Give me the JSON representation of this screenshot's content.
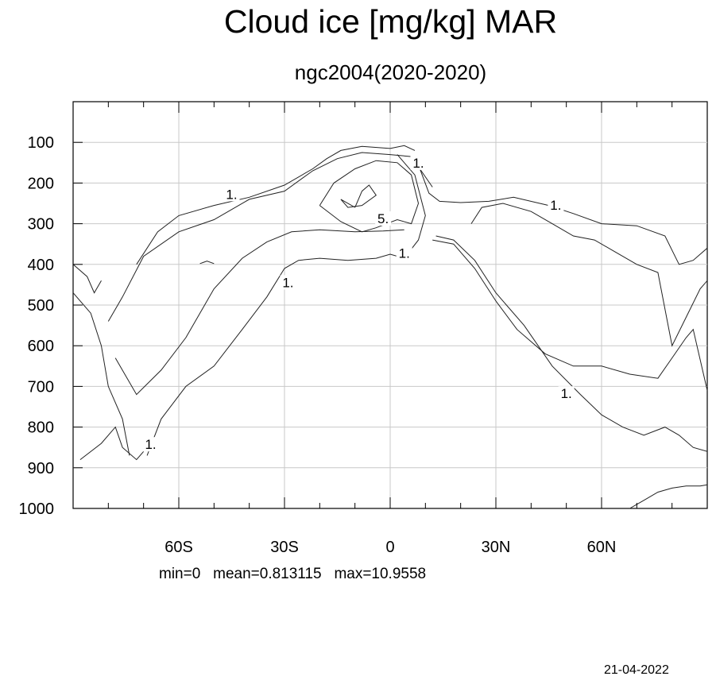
{
  "title": "Cloud ice [mg/kg] MAR",
  "subtitle": "ngc2004(2020-2020)",
  "stats": {
    "min_label": "min=0",
    "mean_label": "mean=0.813115",
    "max_label": "max=10.9558"
  },
  "date": "21-04-2022",
  "chart_data": {
    "type": "contour",
    "title": "Cloud ice [mg/kg] MAR",
    "subtitle": "ngc2004(2020-2020)",
    "xlabel": "",
    "ylabel": "",
    "xlim": [
      -90,
      90
    ],
    "ylim": [
      1000,
      0
    ],
    "x_ticks": [
      {
        "value": -60,
        "label": "60S"
      },
      {
        "value": -30,
        "label": "30S"
      },
      {
        "value": 0,
        "label": "0"
      },
      {
        "value": 30,
        "label": "30N"
      },
      {
        "value": 60,
        "label": "60N"
      }
    ],
    "y_ticks": [
      {
        "value": 100,
        "label": "100"
      },
      {
        "value": 200,
        "label": "200"
      },
      {
        "value": 300,
        "label": "300"
      },
      {
        "value": 400,
        "label": "400"
      },
      {
        "value": 500,
        "label": "500"
      },
      {
        "value": 600,
        "label": "600"
      },
      {
        "value": 700,
        "label": "700"
      },
      {
        "value": 800,
        "label": "800"
      },
      {
        "value": 900,
        "label": "900"
      },
      {
        "value": 1000,
        "label": "1000"
      }
    ],
    "grid": true,
    "contour_levels": [
      1,
      5
    ],
    "contour_labels": [
      {
        "text": "1.",
        "lat": -45,
        "p": 235
      },
      {
        "text": "1.",
        "lat": 8,
        "p": 158
      },
      {
        "text": "1.",
        "lat": 47,
        "p": 262
      },
      {
        "text": "5.",
        "lat": -2,
        "p": 295
      },
      {
        "text": "1.",
        "lat": 4,
        "p": 380
      },
      {
        "text": "1.",
        "lat": -29,
        "p": 452
      },
      {
        "text": "1.",
        "lat": 50,
        "p": 725
      },
      {
        "text": "1.",
        "lat": -68,
        "p": 850
      }
    ],
    "contours": [
      {
        "level": 1,
        "lat": [
          -72,
          -66,
          -60,
          -50,
          -40,
          -30,
          -22,
          -18,
          -14,
          -8,
          0,
          4,
          7
        ],
        "p": [
          400,
          320,
          280,
          255,
          235,
          205,
          165,
          140,
          120,
          110,
          115,
          108,
          120
        ]
      },
      {
        "level": 1,
        "lat": [
          8,
          11,
          14,
          20,
          28,
          35,
          45,
          52,
          60,
          70,
          78,
          82,
          86,
          90
        ],
        "p": [
          155,
          225,
          245,
          248,
          245,
          235,
          255,
          275,
          300,
          305,
          330,
          400,
          390,
          360
        ]
      },
      {
        "level": 1,
        "lat": [
          -69,
          -65,
          -58,
          -50,
          -42,
          -35,
          -30,
          -26,
          -20,
          -12,
          -4,
          0,
          4,
          8,
          10,
          7,
          2
        ],
        "p": [
          870,
          780,
          700,
          650,
          560,
          480,
          410,
          390,
          385,
          390,
          385,
          375,
          385,
          340,
          280,
          180,
          130
        ]
      },
      {
        "level": 1,
        "lat": [
          -80,
          -76,
          -70,
          -60,
          -50,
          -40,
          -30,
          -22,
          -15,
          -8,
          0,
          6,
          12
        ],
        "p": [
          540,
          480,
          380,
          320,
          290,
          240,
          220,
          170,
          140,
          125,
          130,
          135,
          210
        ]
      },
      {
        "level": 1,
        "lat": [
          -78,
          -72,
          -65,
          -58,
          -50,
          -42,
          -35,
          -28,
          -20,
          -10,
          -2,
          4
        ],
        "p": [
          630,
          720,
          660,
          580,
          460,
          385,
          345,
          320,
          315,
          320,
          318,
          315
        ]
      },
      {
        "level": 1,
        "lat": [
          12,
          18,
          24,
          30,
          36,
          44,
          52,
          60,
          68,
          76,
          80,
          84,
          86,
          90
        ],
        "p": [
          340,
          350,
          410,
          490,
          560,
          620,
          650,
          650,
          670,
          680,
          630,
          580,
          560,
          710
        ]
      },
      {
        "level": 1,
        "lat": [
          23,
          26,
          32,
          40,
          46,
          52,
          58,
          64,
          70,
          76,
          80,
          84,
          88,
          90
        ],
        "p": [
          300,
          260,
          250,
          270,
          300,
          330,
          340,
          370,
          400,
          420,
          600,
          530,
          460,
          440
        ]
      },
      {
        "level": 1,
        "lat": [
          13,
          18,
          24,
          30,
          38,
          46,
          54,
          60,
          66,
          72,
          78,
          82,
          86,
          90
        ],
        "p": [
          330,
          340,
          390,
          470,
          550,
          650,
          720,
          770,
          800,
          820,
          800,
          820,
          850,
          860
        ]
      },
      {
        "level": 1,
        "lat": [
          -90,
          -85,
          -82,
          -80,
          -76,
          -74
        ],
        "p": [
          470,
          520,
          600,
          700,
          780,
          870
        ]
      },
      {
        "level": 1,
        "lat": [
          -90,
          -86,
          -84,
          -82
        ],
        "p": [
          400,
          430,
          470,
          440
        ]
      },
      {
        "level": 1,
        "lat": [
          -88,
          -82,
          -78,
          -76,
          -72,
          -70
        ],
        "p": [
          880,
          840,
          800,
          850,
          880,
          860
        ]
      },
      {
        "level": 1,
        "lat": [
          68,
          72,
          76,
          80,
          84,
          88,
          90
        ],
        "p": [
          1000,
          980,
          960,
          950,
          945,
          945,
          942
        ]
      },
      {
        "level": 1,
        "lat": [
          -54,
          -52,
          -50
        ],
        "p": [
          398,
          392,
          398
        ]
      },
      {
        "level": 5,
        "lat": [
          -10,
          -8,
          -6,
          -4,
          -8,
          -12,
          -14,
          -10
        ],
        "p": [
          260,
          220,
          205,
          230,
          255,
          260,
          240,
          260
        ]
      },
      {
        "level": 5,
        "lat": [
          -20,
          -14,
          -8,
          -4,
          2,
          6,
          8,
          6,
          2,
          -4,
          -10,
          -16,
          -20
        ],
        "p": [
          255,
          295,
          320,
          310,
          290,
          300,
          250,
          180,
          150,
          145,
          165,
          200,
          255
        ]
      }
    ]
  }
}
